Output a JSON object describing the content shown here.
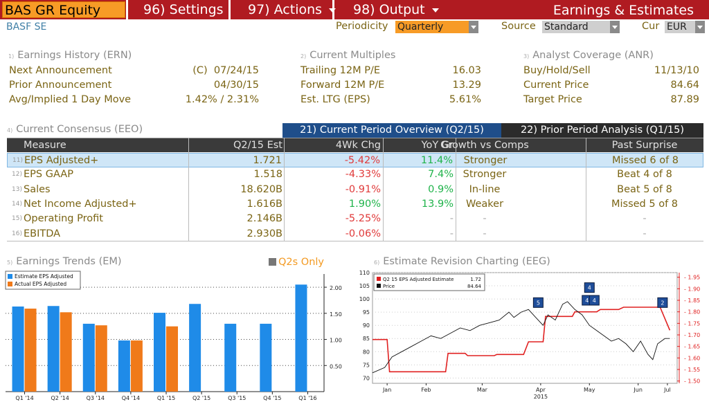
{
  "topbar": {
    "ticker": "BAS GR Equity",
    "settings": "96) Settings",
    "actions": "97) Actions",
    "output": "98) Output",
    "title": "Earnings & Estimates"
  },
  "company": "BASF SE",
  "controls": {
    "periodicity_label": "Periodicity",
    "periodicity": "Quarterly",
    "source_label": "Source",
    "source": "Standard",
    "cur_label": "Cur",
    "cur": "EUR"
  },
  "earnings_history": {
    "num": "1)",
    "title": "Earnings History (ERN)",
    "rows": [
      {
        "label": "Next Announcement",
        "value": "(C)  07/24/15"
      },
      {
        "label": "Prior Announcement",
        "value": "04/30/15"
      },
      {
        "label": "Avg/Implied 1 Day Move",
        "value": "1.42% / 2.31%"
      }
    ]
  },
  "current_multiples": {
    "num": "2)",
    "title": "Current Multiples",
    "rows": [
      {
        "label": "Trailing 12M P/E",
        "value": "16.03"
      },
      {
        "label": "Forward 12M P/E",
        "value": "13.29"
      },
      {
        "label": "Est. LTG (EPS)",
        "value": "5.61%"
      }
    ]
  },
  "analyst_coverage": {
    "num": "3)",
    "title": "Analyst Coverage (ANR)",
    "rows": [
      {
        "label": "Buy/Hold/Sell",
        "value": "11/13/10"
      },
      {
        "label": "Current Price",
        "value": "84.64"
      },
      {
        "label": "Target Price",
        "value": "87.89"
      }
    ]
  },
  "consensus": {
    "num": "4)",
    "title": "Current Consensus (EEO)",
    "tab_current": "21) Current Period Overview (Q2/15)",
    "tab_prior": "22) Prior Period Analysis (Q1/15)",
    "headers": [
      "Measure",
      "Q2/15 Est",
      "4Wk Chg",
      "YoY Gr",
      "Growth vs Comps",
      "Past Surprise"
    ],
    "rows": [
      {
        "num": "11)",
        "measure": "EPS Adjusted+",
        "est": "1.721",
        "chg": "-5.42%",
        "yoy": "11.4%",
        "growth": "Stronger",
        "surprise": "Missed 6 of 8"
      },
      {
        "num": "12)",
        "measure": "EPS GAAP",
        "est": "1.518",
        "chg": "-4.33%",
        "yoy": "7.4%",
        "growth": "Stronger",
        "surprise": "Beat 4 of 8"
      },
      {
        "num": "13)",
        "measure": "Sales",
        "est": "18.620B",
        "chg": "-0.91%",
        "yoy": "0.9%",
        "growth": "In-line",
        "surprise": "Beat 5 of 8"
      },
      {
        "num": "14)",
        "measure": "Net Income Adjusted+",
        "est": "1.616B",
        "chg": "1.90%",
        "yoy": "13.9%",
        "growth": "Weaker",
        "surprise": "Missed 5 of 8"
      },
      {
        "num": "15)",
        "measure": "Operating Profit",
        "est": "2.146B",
        "chg": "-5.25%",
        "yoy": "-",
        "growth": "-",
        "surprise": "-"
      },
      {
        "num": "16)",
        "measure": "EBITDA",
        "est": "2.930B",
        "chg": "-0.06%",
        "yoy": "-",
        "growth": "-",
        "surprise": "-"
      }
    ]
  },
  "trends": {
    "num": "5)",
    "title": "Earnings Trends (EM)",
    "q2s_only": "Q2s Only"
  },
  "revision": {
    "num": "6)",
    "title": "Estimate Revision Charting (EEG)"
  },
  "chart_data": [
    {
      "type": "bar",
      "categories": [
        "Q1 '14",
        "Q2 '14",
        "Q3 '14",
        "Q4 '14",
        "Q1 '15",
        "Q2 '15",
        "Q3 '15",
        "Q4 '15",
        "Q1 '16"
      ],
      "series": [
        {
          "name": "Estimate EPS Adjusted",
          "color": "#1f8be8",
          "values": [
            1.63,
            1.64,
            1.3,
            0.98,
            1.51,
            1.68,
            1.3,
            1.3,
            2.05
          ]
        },
        {
          "name": "Actual EPS Adjusted",
          "color": "#f07a1a",
          "values": [
            1.59,
            1.52,
            1.27,
            0.98,
            1.25,
            null,
            null,
            null,
            null
          ]
        }
      ],
      "ylim": [
        0,
        2.2
      ],
      "yticks": [
        "0.50",
        "1.00",
        "1.50",
        "2.00"
      ],
      "axis_side": "right",
      "legend": "top-left"
    },
    {
      "type": "line",
      "xlabel": "2015",
      "x_ticks": [
        "Jan",
        "Feb",
        "Mar",
        "Apr",
        "May",
        "Jun",
        "Jul"
      ],
      "left_axis": {
        "range": [
          68,
          110
        ],
        "ticks": [
          "70",
          "75",
          "80",
          "85",
          "90",
          "95",
          "100",
          "105",
          "110"
        ]
      },
      "right_axis": {
        "range": [
          1.49,
          1.97
        ],
        "ticks": [
          "1.50",
          "1.55",
          "1.60",
          "1.65",
          "1.70",
          "1.75",
          "1.80",
          "1.85",
          "1.90",
          "1.95"
        ]
      },
      "legend": "top-left",
      "series": [
        {
          "name": "Q2 15 EPS Adjusted Estimate",
          "last": "1.72",
          "color": "#e02020",
          "axis": "right",
          "points": [
            [
              0,
              1.68
            ],
            [
              0.06,
              1.68
            ],
            [
              0.07,
              1.54
            ],
            [
              0.3,
              1.54
            ],
            [
              0.31,
              1.62
            ],
            [
              0.38,
              1.62
            ],
            [
              0.39,
              1.61
            ],
            [
              0.5,
              1.61
            ],
            [
              0.51,
              1.615
            ],
            [
              0.62,
              1.615
            ],
            [
              0.64,
              1.67
            ],
            [
              0.7,
              1.67
            ],
            [
              0.71,
              1.78
            ],
            [
              0.82,
              1.78
            ],
            [
              0.83,
              1.8
            ],
            [
              0.92,
              1.8
            ],
            [
              0.935,
              1.81
            ],
            [
              1.01,
              1.81
            ],
            [
              1.03,
              1.82
            ],
            [
              1.18,
              1.82
            ],
            [
              1.2,
              1.77
            ],
            [
              1.22,
              1.72
            ]
          ]
        },
        {
          "name": "Price",
          "last": "84.64",
          "color": "#111",
          "axis": "left",
          "points": [
            [
              0,
              72
            ],
            [
              0.05,
              74
            ],
            [
              0.08,
              78
            ],
            [
              0.12,
              80
            ],
            [
              0.16,
              82
            ],
            [
              0.2,
              84
            ],
            [
              0.24,
              86
            ],
            [
              0.28,
              85
            ],
            [
              0.32,
              87
            ],
            [
              0.36,
              89
            ],
            [
              0.4,
              88
            ],
            [
              0.44,
              90
            ],
            [
              0.48,
              91
            ],
            [
              0.52,
              92
            ],
            [
              0.56,
              95
            ],
            [
              0.58,
              93
            ],
            [
              0.61,
              95
            ],
            [
              0.64,
              96
            ],
            [
              0.67,
              93
            ],
            [
              0.7,
              90
            ],
            [
              0.72,
              94
            ],
            [
              0.75,
              92
            ],
            [
              0.78,
              98
            ],
            [
              0.8,
              99
            ],
            [
              0.83,
              96
            ],
            [
              0.86,
              94
            ],
            [
              0.89,
              90
            ],
            [
              0.92,
              88
            ],
            [
              0.95,
              86
            ],
            [
              0.98,
              84
            ],
            [
              1.01,
              85
            ],
            [
              1.04,
              83
            ],
            [
              1.07,
              80
            ],
            [
              1.1,
              84
            ],
            [
              1.13,
              79
            ],
            [
              1.15,
              77
            ],
            [
              1.17,
              83
            ],
            [
              1.2,
              85
            ],
            [
              1.22,
              85
            ]
          ]
        }
      ],
      "markers": [
        {
          "label": "5",
          "x": 0.68,
          "y": 1.84
        },
        {
          "label": "4",
          "x": 0.89,
          "y": 1.905
        },
        {
          "label": "4",
          "x": 0.88,
          "y": 1.85
        },
        {
          "label": "4",
          "x": 0.91,
          "y": 1.85
        },
        {
          "label": "2",
          "x": 1.19,
          "y": 1.84
        }
      ]
    }
  ]
}
